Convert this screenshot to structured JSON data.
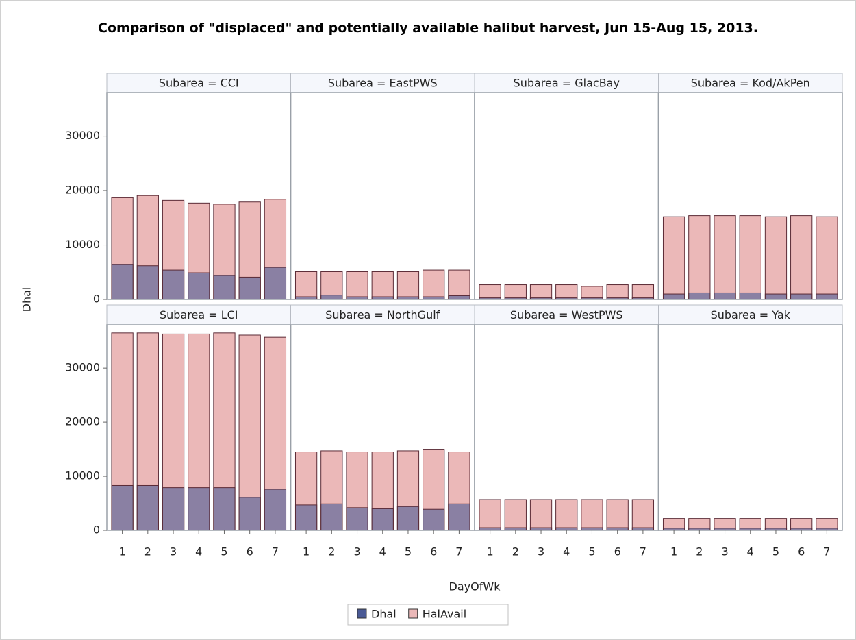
{
  "chart_data": {
    "type": "bar",
    "title": "Comparison of \"displaced\" and potentially available halibut harvest, Jun 15-Aug 15, 2013.",
    "x_label": "DayOfWk",
    "y_label": "Dhal",
    "categories": [
      "1",
      "2",
      "3",
      "4",
      "5",
      "6",
      "7"
    ],
    "ylim": [
      0,
      38000
    ],
    "yticks": [
      0,
      10000,
      20000,
      30000
    ],
    "series": [
      {
        "name": "Dhal",
        "color": "#4a5a95"
      },
      {
        "name": "HalAvail",
        "color": "#ebb8b8"
      }
    ],
    "panels": [
      {
        "title": "Subarea = CCI",
        "series": [
          {
            "values": [
              6400,
              6200,
              5400,
              4900,
              4400,
              4100,
              5900
            ]
          },
          {
            "values": [
              18700,
              19100,
              18200,
              17700,
              17500,
              17900,
              18400
            ]
          }
        ]
      },
      {
        "title": "Subarea = EastPWS",
        "series": [
          {
            "values": [
              500,
              800,
              500,
              500,
              500,
              500,
              700
            ]
          },
          {
            "values": [
              5100,
              5100,
              5100,
              5100,
              5100,
              5400,
              5400
            ]
          }
        ]
      },
      {
        "title": "Subarea = GlacBay",
        "series": [
          {
            "values": [
              300,
              300,
              300,
              300,
              300,
              300,
              300
            ]
          },
          {
            "values": [
              2700,
              2700,
              2700,
              2700,
              2400,
              2700,
              2700
            ]
          }
        ]
      },
      {
        "title": "Subarea = Kod/AkPen",
        "series": [
          {
            "values": [
              1000,
              1200,
              1200,
              1200,
              1000,
              1000,
              1000
            ]
          },
          {
            "values": [
              15200,
              15400,
              15400,
              15400,
              15200,
              15400,
              15200
            ]
          }
        ]
      },
      {
        "title": "Subarea = LCI",
        "series": [
          {
            "values": [
              8300,
              8300,
              7900,
              7900,
              7900,
              6100,
              7600
            ]
          },
          {
            "values": [
              36500,
              36500,
              36300,
              36300,
              36500,
              36100,
              35700
            ]
          }
        ]
      },
      {
        "title": "Subarea = NorthGulf",
        "series": [
          {
            "values": [
              4700,
              4900,
              4200,
              4000,
              4400,
              3900,
              4900
            ]
          },
          {
            "values": [
              14500,
              14700,
              14500,
              14500,
              14700,
              15000,
              14500
            ]
          }
        ]
      },
      {
        "title": "Subarea = WestPWS",
        "series": [
          {
            "values": [
              500,
              500,
              500,
              500,
              500,
              500,
              500
            ]
          },
          {
            "values": [
              5700,
              5700,
              5700,
              5700,
              5700,
              5700,
              5700
            ]
          }
        ]
      },
      {
        "title": "Subarea = Yak",
        "series": [
          {
            "values": [
              400,
              400,
              400,
              400,
              400,
              400,
              400
            ]
          },
          {
            "values": [
              2200,
              2200,
              2200,
              2200,
              2200,
              2200,
              2200
            ]
          }
        ]
      }
    ]
  }
}
